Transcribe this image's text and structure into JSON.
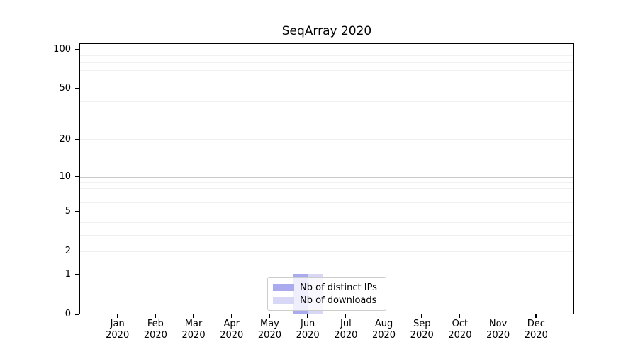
{
  "chart_data": {
    "type": "bar",
    "title": "SeqArray 2020",
    "categories": [
      "Jan",
      "Feb",
      "Mar",
      "Apr",
      "May",
      "Jun",
      "Jul",
      "Aug",
      "Sep",
      "Oct",
      "Nov",
      "Dec"
    ],
    "year_label": "2020",
    "series": [
      {
        "name": "Nb of distinct IPs",
        "color": "#aaaaee",
        "values": [
          0,
          0,
          0,
          0,
          0,
          1,
          0,
          0,
          0,
          0,
          0,
          0
        ]
      },
      {
        "name": "Nb of downloads",
        "color": "#d8d8f6",
        "values": [
          0,
          0,
          0,
          0,
          0,
          1,
          0,
          0,
          0,
          0,
          0,
          0
        ]
      }
    ],
    "y_scale": "log1p",
    "ylim": [
      0,
      112
    ],
    "y_ticks": [
      {
        "label": "100",
        "value": 100
      },
      {
        "label": "50",
        "value": 50
      },
      {
        "label": "20",
        "value": 20
      },
      {
        "label": "10",
        "value": 10
      },
      {
        "label": "5",
        "value": 5
      },
      {
        "label": "2",
        "value": 2
      },
      {
        "label": "1",
        "value": 1
      },
      {
        "label": "0",
        "value": 0
      }
    ],
    "y_major_gridlines": [
      1,
      10,
      100
    ],
    "y_minor_gridlines": [
      2,
      3,
      4,
      6,
      7,
      8,
      9,
      20,
      30,
      40,
      60,
      70,
      80,
      90
    ],
    "grid": true,
    "legend_position": "bottom-center",
    "colors": {
      "grid_major": "#c9c9c9",
      "grid_minor": "#f0f0f0",
      "axis": "#000000",
      "legend_border": "#cccccc"
    }
  }
}
